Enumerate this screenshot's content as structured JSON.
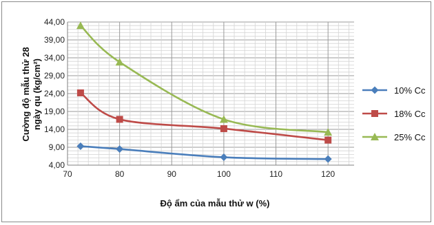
{
  "chart_data": {
    "type": "line",
    "title": "",
    "xlabel": "Độ ẩm của mẫu thử w (%)",
    "ylabel_line1": "Cường độ mẫu thử 28",
    "ylabel_line2": "ngày qu (kg/cm²)",
    "xlim": [
      70,
      125
    ],
    "ylim": [
      4,
      44
    ],
    "xticks": [
      70,
      80,
      90,
      100,
      110,
      120
    ],
    "yticks": [
      "4,00",
      "9,00",
      "14,00",
      "19,00",
      "24,00",
      "29,00",
      "34,00",
      "39,00",
      "44,00"
    ],
    "ytick_values": [
      4,
      9,
      14,
      19,
      24,
      29,
      34,
      39,
      44
    ],
    "grid": true,
    "legend_position": "right",
    "series": [
      {
        "name": "10% Cc",
        "color": "#4a7ebb",
        "marker": "diamond",
        "x": [
          72.5,
          80,
          100,
          120
        ],
        "y": [
          9.3,
          8.5,
          6.2,
          5.7
        ]
      },
      {
        "name": "18% Cc",
        "color": "#be4b48",
        "marker": "square",
        "x": [
          72.5,
          80,
          100,
          120
        ],
        "y": [
          24.2,
          16.8,
          14.2,
          11.0
        ]
      },
      {
        "name": "25% Cc",
        "color": "#98b954",
        "marker": "triangle",
        "x": [
          72.5,
          80,
          100,
          120
        ],
        "y": [
          43.0,
          32.8,
          16.8,
          13.2
        ]
      }
    ]
  }
}
